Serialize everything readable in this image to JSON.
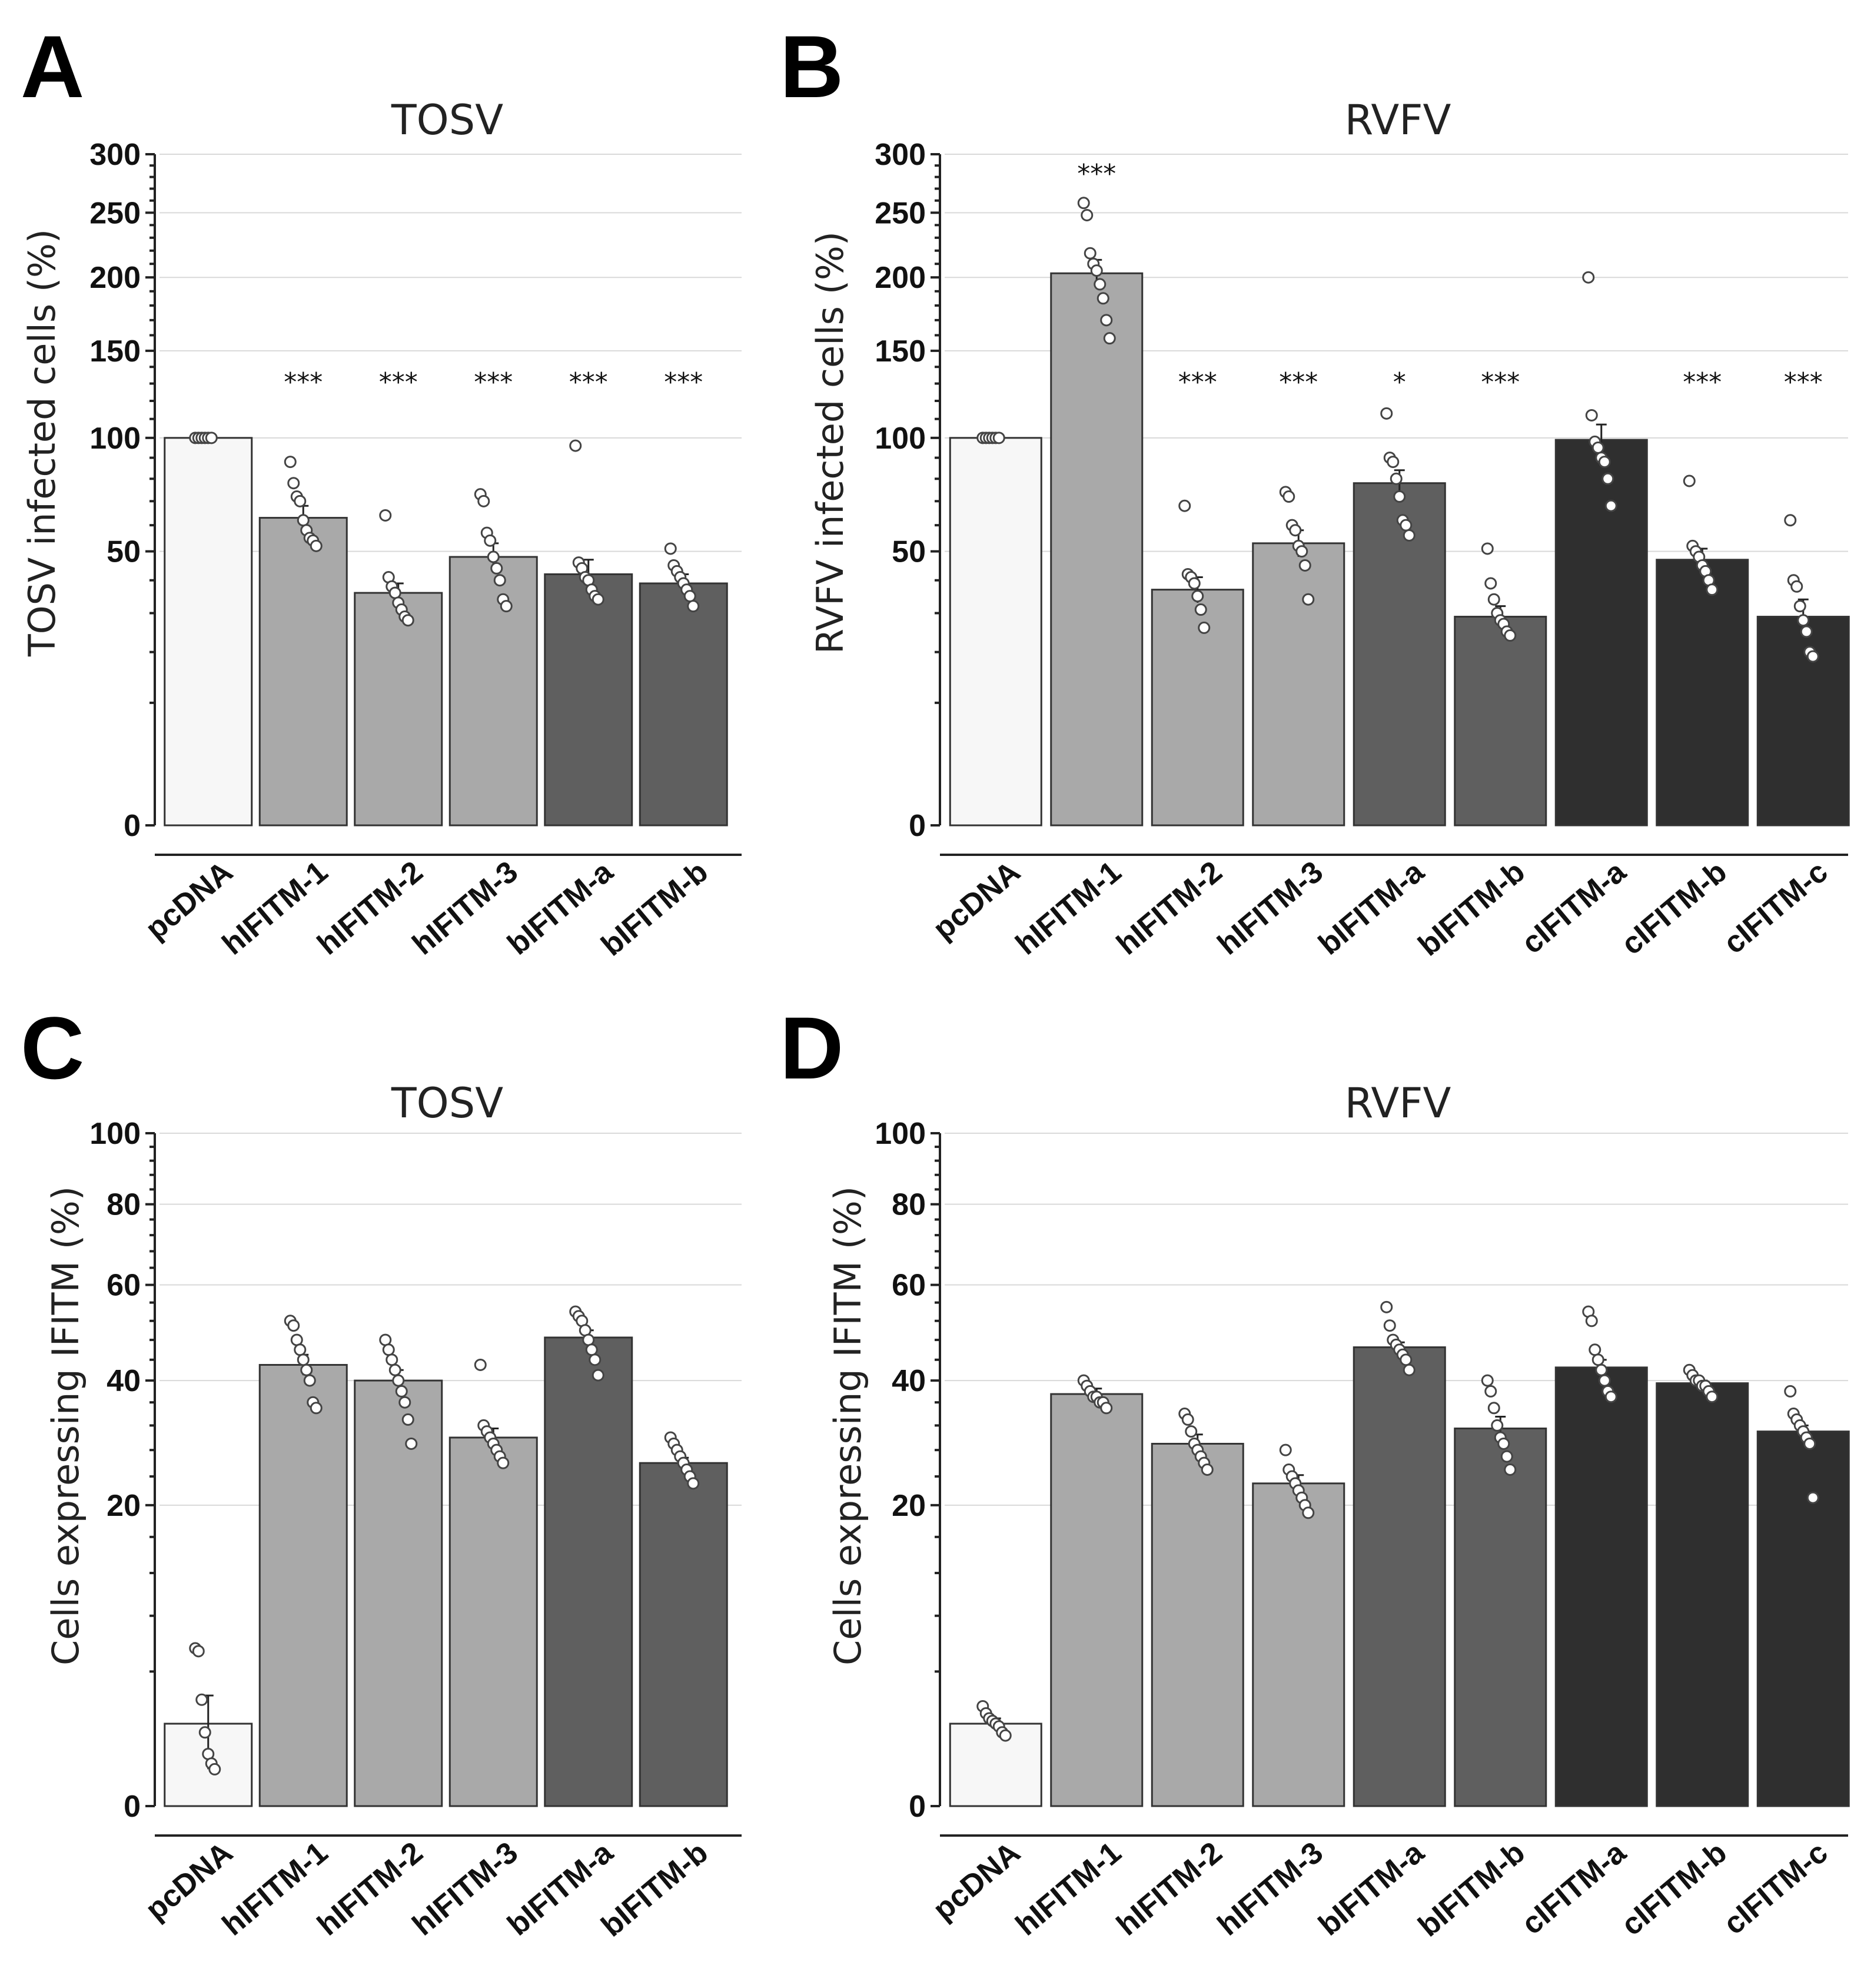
{
  "colors": {
    "pcDNA": "#f7f7f7",
    "human": "#a9a9a9",
    "bat": "#5f5f5f",
    "camel": "#2f2f2f"
  },
  "chart_data": [
    {
      "panel": "A",
      "type": "bar",
      "title": "TOSV",
      "ylabel": "TOSV infected cells (%)",
      "yscale": "sqrt",
      "ylim": [
        0,
        300
      ],
      "yticks": [
        0,
        50,
        100,
        150,
        200,
        250,
        300
      ],
      "categories": [
        "pcDNA",
        "hIFITM-1",
        "hIFITM-2",
        "hIFITM-3",
        "bIFITM-a",
        "bIFITM-b"
      ],
      "groups": [
        "pcDNA",
        "human",
        "human",
        "human",
        "bat",
        "bat"
      ],
      "values": [
        100,
        63,
        36,
        48,
        42,
        39
      ],
      "errors": [
        0,
        5,
        3,
        5,
        5,
        3
      ],
      "significance": [
        "",
        "***",
        "***",
        "***",
        "***",
        "***"
      ],
      "points": [
        [
          100,
          100,
          100,
          100,
          100,
          100
        ],
        [
          88,
          78,
          72,
          70,
          62,
          58,
          55,
          54,
          52
        ],
        [
          64,
          41,
          38,
          36,
          33,
          31,
          29,
          28
        ],
        [
          73,
          70,
          57,
          54,
          48,
          44,
          40,
          34,
          32
        ],
        [
          96,
          46,
          44,
          41,
          40,
          37,
          35,
          34
        ],
        [
          51,
          45,
          43,
          41,
          39,
          37,
          35,
          32
        ]
      ]
    },
    {
      "panel": "B",
      "type": "bar",
      "title": "RVFV",
      "ylabel": "RVFV infected cells (%)",
      "yscale": "sqrt",
      "ylim": [
        0,
        300
      ],
      "yticks": [
        0,
        50,
        100,
        150,
        200,
        250,
        300
      ],
      "categories": [
        "pcDNA",
        "hIFITM-1",
        "hIFITM-2",
        "hIFITM-3",
        "bIFITM-a",
        "bIFITM-b",
        "cIFITM-a",
        "cIFITM-b",
        "cIFITM-c"
      ],
      "groups": [
        "pcDNA",
        "human",
        "human",
        "human",
        "bat",
        "bat",
        "camel",
        "camel",
        "camel"
      ],
      "values": [
        100,
        203,
        37,
        53,
        78,
        29,
        99,
        47,
        29
      ],
      "errors": [
        0,
        10,
        4,
        5,
        6,
        3,
        8,
        4,
        5
      ],
      "significance": [
        "",
        "***",
        "***",
        "***",
        "*",
        "***",
        "",
        "***",
        "***"
      ],
      "points": [
        [
          100,
          100,
          100,
          100,
          100,
          100
        ],
        [
          258,
          248,
          218,
          210,
          205,
          195,
          185,
          170,
          158
        ],
        [
          68,
          42,
          41,
          39,
          35,
          31,
          26
        ],
        [
          74,
          72,
          60,
          58,
          52,
          50,
          45,
          34
        ],
        [
          113,
          90,
          88,
          80,
          72,
          62,
          60,
          56
        ],
        [
          51,
          39,
          34,
          30,
          28,
          27,
          25,
          24
        ],
        [
          200,
          112,
          98,
          95,
          90,
          88,
          80,
          68
        ],
        [
          79,
          52,
          50,
          48,
          45,
          43,
          40,
          37
        ],
        [
          62,
          40,
          38,
          32,
          28,
          25,
          20,
          19
        ]
      ]
    },
    {
      "panel": "C",
      "type": "bar",
      "title": "TOSV",
      "ylabel": "Cells expressing IFITM (%)",
      "yscale": "sqrt",
      "ylim": [
        0,
        100
      ],
      "yticks": [
        0,
        20,
        40,
        60,
        80,
        100
      ],
      "categories": [
        "pcDNA",
        "hIFITM-1",
        "hIFITM-2",
        "hIFITM-3",
        "bIFITM-a",
        "bIFITM-b"
      ],
      "groups": [
        "pcDNA",
        "human",
        "human",
        "human",
        "bat",
        "bat"
      ],
      "values": [
        1.5,
        43,
        40,
        30,
        48.5,
        26
      ],
      "errors": [
        1.2,
        2,
        2,
        1.5,
        1.5,
        0.8
      ],
      "significance": [
        "",
        "",
        "",
        "",
        "",
        ""
      ],
      "points": [
        [
          5.5,
          5.3,
          2.5,
          1.2,
          0.6,
          0.4,
          0.3
        ],
        [
          52,
          51,
          48,
          46,
          44,
          42,
          40,
          36,
          35
        ],
        [
          48,
          46,
          44,
          42,
          40,
          38,
          36,
          33,
          29
        ],
        [
          43,
          32,
          31,
          30,
          29,
          28,
          27,
          26
        ],
        [
          54,
          53,
          52,
          50,
          48,
          46,
          44,
          41
        ],
        [
          30,
          29,
          28,
          27,
          26,
          25,
          24,
          23
        ]
      ]
    },
    {
      "panel": "D",
      "type": "bar",
      "title": "RVFV",
      "ylabel": "Cells expressing IFITM (%)",
      "yscale": "sqrt",
      "ylim": [
        0,
        100
      ],
      "yticks": [
        0,
        20,
        40,
        60,
        80,
        100
      ],
      "categories": [
        "pcDNA",
        "hIFITM-1",
        "hIFITM-2",
        "hIFITM-3",
        "bIFITM-a",
        "bIFITM-b",
        "cIFITM-a",
        "cIFITM-b",
        "cIFITM-c"
      ],
      "groups": [
        "pcDNA",
        "human",
        "human",
        "human",
        "bat",
        "bat",
        "camel",
        "camel",
        "camel"
      ],
      "values": [
        1.5,
        37.5,
        29,
        23,
        46.5,
        31.5,
        42.5,
        39.5,
        31
      ],
      "errors": [
        0.2,
        1,
        1.5,
        1.2,
        1,
        2,
        1.5,
        0.5,
        1
      ],
      "significance": [
        "",
        "",
        "",
        "",
        "",
        "",
        "",
        "",
        ""
      ],
      "points": [
        [
          2.2,
          1.9,
          1.7,
          1.6,
          1.5,
          1.4,
          1.2,
          1.1
        ],
        [
          40,
          39,
          38,
          37,
          37,
          36,
          36,
          35
        ],
        [
          34,
          33,
          31,
          29,
          28,
          27,
          26,
          25
        ],
        [
          28,
          25,
          24,
          23,
          22,
          21,
          20,
          19
        ],
        [
          55,
          51,
          48,
          47,
          46,
          45,
          44,
          42
        ],
        [
          40,
          38,
          35,
          32,
          30,
          29,
          27,
          25
        ],
        [
          54,
          52,
          46,
          44,
          42,
          40,
          38,
          37
        ],
        [
          42,
          41,
          40,
          40,
          39,
          39,
          38,
          37
        ],
        [
          38,
          34,
          33,
          32,
          31,
          30,
          29,
          21
        ]
      ]
    }
  ]
}
